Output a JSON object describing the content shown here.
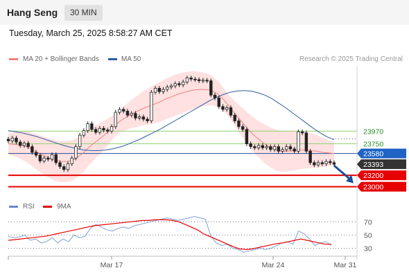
{
  "header": {
    "title": "Hang Seng",
    "timeframe": "30 MIN"
  },
  "timestamp": "Tuesday, March 25, 2025 8:58:27 AM CET",
  "legend": {
    "ma20_label": "MA 20 + Bollinger Bands",
    "ma50_label": "MA 50",
    "credit": "Research © 2025 Trading Central"
  },
  "rsi_legend": {
    "rsi_label": "RSI",
    "ma_label": "9MA"
  },
  "colors": {
    "ma20": "#f08080",
    "ma50": "#2e5c9e",
    "band": "#ffd7d7",
    "support": "#e60000",
    "resistance": "#8fd16b",
    "candle": "#222222"
  },
  "chart_data": [
    {
      "type": "candlestick",
      "title": "Hang Seng",
      "timeframe": "30 MIN",
      "x_tick_labels": [
        "Mar 17",
        "Mar 24",
        "Mar 31"
      ],
      "levels": [
        {
          "value": 23970,
          "label": "23970",
          "kind": "resistance"
        },
        {
          "value": 23750,
          "label": "23750",
          "kind": "resistance"
        },
        {
          "value": 23580,
          "label": "23580",
          "kind": "pivot"
        },
        {
          "value": 23393,
          "label": "23393",
          "kind": "last_price"
        },
        {
          "value": 23200,
          "label": "23200",
          "kind": "support"
        },
        {
          "value": 23000,
          "label": "23000",
          "kind": "support"
        }
      ],
      "ylim": [
        22850,
        25100
      ],
      "last_price": 23393,
      "close": [
        23800,
        23850,
        23780,
        23720,
        23760,
        23700,
        23600,
        23550,
        23450,
        23500,
        23480,
        23560,
        23420,
        23350,
        23300,
        23400,
        23500,
        23700,
        23900,
        23980,
        24100,
        24000,
        23950,
        24020,
        23990,
        23970,
        24050,
        24300,
        24350,
        24320,
        24250,
        24280,
        24200,
        24220,
        24180,
        24150,
        24650,
        24720,
        24660,
        24700,
        24740,
        24760,
        24800,
        24780,
        24830,
        24900,
        24880,
        24870,
        24850,
        24860,
        24850,
        24600,
        24550,
        24400,
        24350,
        24380,
        24250,
        24150,
        24050,
        24000,
        23750,
        23700,
        23680,
        23720,
        23680,
        23700,
        23650,
        23700,
        23620,
        23650,
        23700,
        23660,
        23620,
        23960,
        23940,
        23620,
        23420,
        23380,
        23420,
        23400,
        23440,
        23420,
        23393
      ],
      "series": [
        {
          "name": "MA 20",
          "values": [
            23750,
            23740,
            23730,
            23700,
            23660,
            23600,
            23550,
            23500,
            23460,
            23440,
            23440,
            23460,
            23520,
            23600,
            23700,
            23780,
            23860,
            23950,
            24040,
            24130,
            24200,
            24260,
            24310,
            24360,
            24400,
            24440,
            24480,
            24530,
            24570,
            24610,
            24640,
            24670,
            24690,
            24700,
            24700,
            24680,
            24620,
            24520,
            24400,
            24270,
            24150,
            24030,
            23920,
            23830,
            23750,
            23690,
            23640,
            23620,
            23620,
            23630,
            23640,
            23640,
            23630,
            23620,
            23600,
            23590,
            23580
          ]
        },
        {
          "name": "MA 50",
          "values": [
            23980,
            23960,
            23940,
            23910,
            23880,
            23840,
            23800,
            23760,
            23720,
            23690,
            23660,
            23640,
            23630,
            23630,
            23640,
            23660,
            23690,
            23730,
            23780,
            23830,
            23890,
            23950,
            24010,
            24080,
            24150,
            24220,
            24290,
            24360,
            24430,
            24500,
            24560,
            24610,
            24650,
            24670,
            24680,
            24670,
            24640,
            24600,
            24540,
            24460,
            24380,
            24290,
            24200,
            24110,
            24020,
            23940,
            23870,
            23820
          ]
        }
      ]
    },
    {
      "type": "line",
      "title": "RSI",
      "yticks": [
        70,
        50,
        30
      ],
      "ylim": [
        20,
        85
      ],
      "series": [
        {
          "name": "RSI",
          "values": [
            48,
            46,
            47,
            50,
            42,
            44,
            38,
            40,
            46,
            38,
            44,
            40,
            50,
            46,
            48,
            60,
            66,
            62,
            58,
            56,
            60,
            62,
            60,
            64,
            66,
            68,
            70,
            72,
            74,
            76,
            74,
            72,
            74,
            76,
            78,
            76,
            74,
            48,
            38,
            34,
            36,
            30,
            28,
            24,
            26,
            28,
            30,
            28,
            30,
            34,
            38,
            40,
            36,
            56,
            52,
            44,
            34,
            38,
            40,
            34
          ]
        },
        {
          "name": "9MA",
          "values": [
            42,
            43,
            44,
            45,
            46,
            47,
            48,
            50,
            52,
            54,
            56,
            58,
            60,
            62,
            64,
            65,
            66,
            67,
            68,
            69,
            70,
            71,
            72,
            72,
            73,
            73,
            73,
            72,
            70,
            66,
            62,
            58,
            52,
            48,
            44,
            40,
            36,
            32,
            29,
            28,
            29,
            31,
            33,
            35,
            37,
            38,
            40,
            42,
            44,
            42,
            40,
            38,
            36,
            36
          ]
        }
      ]
    }
  ]
}
